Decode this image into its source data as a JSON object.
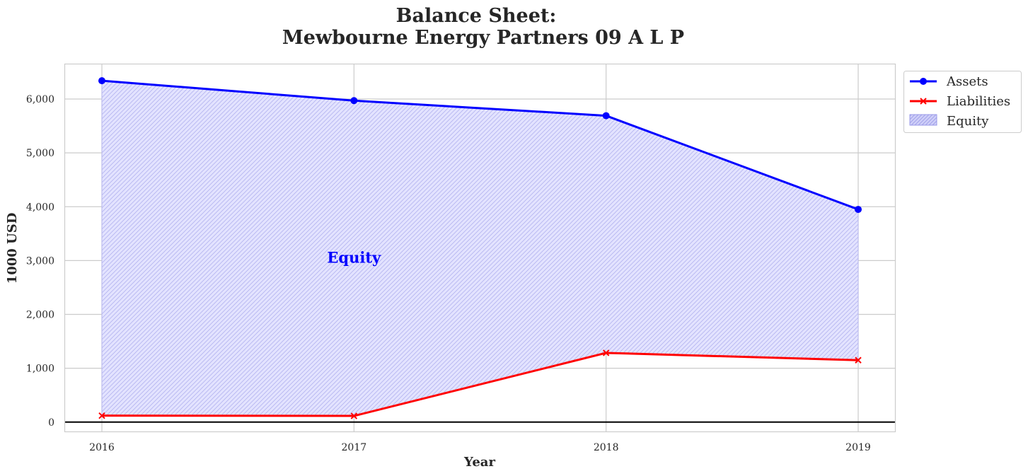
{
  "chart_data": {
    "type": "area",
    "title_line1": "Balance Sheet:",
    "title_line2": "Mewbourne Energy Partners 09 A L P",
    "xlabel": "Year",
    "ylabel": "1000 USD",
    "categories": [
      "2016",
      "2017",
      "2018",
      "2019"
    ],
    "ylim": [
      -180,
      6650
    ],
    "yticks": [
      0,
      1000,
      2000,
      3000,
      4000,
      5000,
      6000
    ],
    "ytick_labels": [
      "0",
      "1,000",
      "2,000",
      "3,000",
      "4,000",
      "5,000",
      "6,000"
    ],
    "grid": true,
    "legend_position": "outside top-right",
    "series": [
      {
        "name": "Assets",
        "values": [
          6340,
          5970,
          5690,
          3950
        ],
        "color": "#0000ff",
        "marker": "circle"
      },
      {
        "name": "Liabilities",
        "values": [
          120,
          115,
          1285,
          1150
        ],
        "color": "#ff0000",
        "marker": "x"
      }
    ],
    "fill": {
      "name": "Equity",
      "between": [
        "Liabilities",
        "Assets"
      ],
      "color": "#0000ff",
      "hatch": "////"
    },
    "annotation": {
      "text": "Equity",
      "x": "2017",
      "y": 3050,
      "color": "#0000ff"
    }
  }
}
